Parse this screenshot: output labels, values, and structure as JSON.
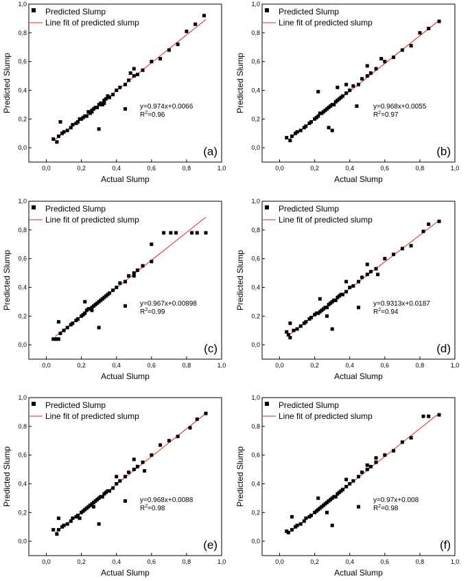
{
  "figure": {
    "marker_color": "#000000",
    "fit_line_color": "#e02020",
    "axis_color": "#000000"
  },
  "chart_data": [
    {
      "type": "scatter",
      "panel": "(a)",
      "xlabel": "Actual Slump",
      "ylabel": "Predicted Slump",
      "xlim": [
        -0.1,
        1.0
      ],
      "ylim": [
        -0.1,
        1.0
      ],
      "xticks": [
        "0,0",
        "0,2",
        "0,4",
        "0,6",
        "0,8",
        "1,0"
      ],
      "yticks": [
        "0,0",
        "0,2",
        "0,4",
        "0,6",
        "0,8",
        "1,0"
      ],
      "legend": [
        "Predicted Slump",
        "Line fit of predicted slump"
      ],
      "equation": "y=0.974x+0.0066",
      "r2_label": "R",
      "r2_exp": "2",
      "r2_value": "=0.96",
      "fit": {
        "slope": 0.974,
        "intercept": 0.0066,
        "x_range": [
          0.05,
          0.91
        ]
      },
      "x": [
        0.04,
        0.06,
        0.07,
        0.09,
        0.1,
        0.12,
        0.14,
        0.15,
        0.17,
        0.18,
        0.2,
        0.21,
        0.22,
        0.23,
        0.24,
        0.25,
        0.26,
        0.27,
        0.28,
        0.29,
        0.3,
        0.31,
        0.32,
        0.33,
        0.34,
        0.35,
        0.36,
        0.38,
        0.4,
        0.42,
        0.45,
        0.47,
        0.5,
        0.52,
        0.55,
        0.6,
        0.65,
        0.7,
        0.75,
        0.8,
        0.85,
        0.9,
        0.08,
        0.3,
        0.45,
        0.48,
        0.5,
        0.19,
        0.26,
        0.33
      ],
      "y": [
        0.06,
        0.04,
        0.08,
        0.1,
        0.11,
        0.12,
        0.14,
        0.16,
        0.17,
        0.18,
        0.2,
        0.21,
        0.22,
        0.22,
        0.25,
        0.24,
        0.26,
        0.27,
        0.28,
        0.28,
        0.3,
        0.31,
        0.3,
        0.33,
        0.34,
        0.36,
        0.35,
        0.37,
        0.4,
        0.42,
        0.44,
        0.47,
        0.5,
        0.51,
        0.54,
        0.6,
        0.62,
        0.68,
        0.72,
        0.81,
        0.86,
        0.92,
        0.18,
        0.13,
        0.27,
        0.52,
        0.55,
        0.2,
        0.25,
        0.31
      ]
    },
    {
      "type": "scatter",
      "panel": "(b)",
      "xlabel": "Actual Slump",
      "ylabel": "Predicted Slump",
      "xlim": [
        -0.1,
        1.0
      ],
      "ylim": [
        -0.1,
        1.0
      ],
      "xticks": [
        "0,0",
        "0,2",
        "0,4",
        "0,6",
        "0,8",
        "1,0"
      ],
      "yticks": [
        "0,0",
        "0,2",
        "0,4",
        "0,6",
        "0,8",
        "1,0"
      ],
      "legend": [
        "Predicted Slump",
        "Line fit of predicted slump"
      ],
      "equation": "y=0.968x+0.0055",
      "r2_label": "R",
      "r2_exp": "2",
      "r2_value": "=0.97",
      "fit": {
        "slope": 0.968,
        "intercept": 0.0055,
        "x_range": [
          0.05,
          0.91
        ]
      },
      "x": [
        0.04,
        0.06,
        0.07,
        0.09,
        0.1,
        0.12,
        0.14,
        0.15,
        0.17,
        0.18,
        0.2,
        0.21,
        0.22,
        0.23,
        0.24,
        0.25,
        0.26,
        0.27,
        0.28,
        0.29,
        0.3,
        0.31,
        0.32,
        0.33,
        0.34,
        0.35,
        0.36,
        0.38,
        0.4,
        0.42,
        0.45,
        0.47,
        0.5,
        0.52,
        0.55,
        0.6,
        0.65,
        0.7,
        0.75,
        0.8,
        0.85,
        0.91,
        0.3,
        0.44,
        0.22,
        0.5,
        0.33,
        0.28,
        0.38,
        0.58
      ],
      "y": [
        0.07,
        0.05,
        0.08,
        0.1,
        0.11,
        0.12,
        0.14,
        0.15,
        0.17,
        0.18,
        0.2,
        0.21,
        0.22,
        0.24,
        0.24,
        0.25,
        0.26,
        0.27,
        0.28,
        0.29,
        0.3,
        0.3,
        0.32,
        0.33,
        0.34,
        0.35,
        0.36,
        0.38,
        0.4,
        0.43,
        0.44,
        0.48,
        0.5,
        0.52,
        0.55,
        0.6,
        0.63,
        0.68,
        0.71,
        0.8,
        0.83,
        0.88,
        0.12,
        0.29,
        0.39,
        0.57,
        0.42,
        0.14,
        0.44,
        0.62
      ]
    },
    {
      "type": "scatter",
      "panel": "(c)",
      "xlabel": "Actual Slump",
      "ylabel": "Predicted Slump",
      "xlim": [
        -0.1,
        1.0
      ],
      "ylim": [
        -0.1,
        1.0
      ],
      "xticks": [
        "0,0",
        "0,2",
        "0,4",
        "0,6",
        "0,8",
        "1,0"
      ],
      "yticks": [
        "0,0",
        "0,2",
        "0,4",
        "0,6",
        "0,8",
        "1,0"
      ],
      "legend": [
        "Predicted Slump",
        "Line fit of predicted slump"
      ],
      "equation": "y=0.967x+0.00898",
      "r2_label": "R",
      "r2_exp": "2",
      "r2_value": "=0.99",
      "fit": {
        "slope": 0.967,
        "intercept": 0.00898,
        "x_range": [
          0.05,
          0.91
        ]
      },
      "x": [
        0.04,
        0.05,
        0.06,
        0.07,
        0.08,
        0.1,
        0.12,
        0.14,
        0.15,
        0.17,
        0.18,
        0.2,
        0.21,
        0.22,
        0.23,
        0.24,
        0.25,
        0.26,
        0.27,
        0.28,
        0.29,
        0.3,
        0.31,
        0.32,
        0.33,
        0.34,
        0.35,
        0.36,
        0.38,
        0.4,
        0.42,
        0.45,
        0.47,
        0.5,
        0.52,
        0.55,
        0.6,
        0.6,
        0.67,
        0.71,
        0.74,
        0.83,
        0.86,
        0.91,
        0.07,
        0.3,
        0.45,
        0.22,
        0.26,
        0.5
      ],
      "y": [
        0.04,
        0.04,
        0.04,
        0.04,
        0.08,
        0.1,
        0.12,
        0.14,
        0.15,
        0.17,
        0.18,
        0.2,
        0.21,
        0.22,
        0.24,
        0.25,
        0.25,
        0.26,
        0.27,
        0.28,
        0.29,
        0.3,
        0.31,
        0.32,
        0.33,
        0.34,
        0.35,
        0.36,
        0.38,
        0.4,
        0.43,
        0.44,
        0.48,
        0.5,
        0.52,
        0.55,
        0.58,
        0.7,
        0.78,
        0.78,
        0.78,
        0.78,
        0.78,
        0.78,
        0.16,
        0.12,
        0.27,
        0.3,
        0.24,
        0.48
      ]
    },
    {
      "type": "scatter",
      "panel": "(d)",
      "xlabel": "Actual Slump",
      "ylabel": "Predicted Slump",
      "xlim": [
        -0.1,
        1.0
      ],
      "ylim": [
        -0.1,
        1.0
      ],
      "xticks": [
        "0,0",
        "0,2",
        "0,4",
        "0,6",
        "0,8",
        "1,0"
      ],
      "yticks": [
        "0,0",
        "0,2",
        "0,4",
        "0,6",
        "0,8",
        "1,0"
      ],
      "legend": [
        "Predicted Slump",
        "Line fit of predicted slump"
      ],
      "equation": "y=0.9313x+0.0187",
      "r2_label": "R",
      "r2_exp": "2",
      "r2_value": "=0.94",
      "fit": {
        "slope": 0.9313,
        "intercept": 0.0187,
        "x_range": [
          0.05,
          0.91
        ]
      },
      "x": [
        0.04,
        0.05,
        0.06,
        0.08,
        0.1,
        0.12,
        0.14,
        0.15,
        0.17,
        0.18,
        0.2,
        0.21,
        0.22,
        0.23,
        0.24,
        0.25,
        0.26,
        0.27,
        0.28,
        0.29,
        0.3,
        0.31,
        0.32,
        0.33,
        0.34,
        0.35,
        0.36,
        0.38,
        0.4,
        0.42,
        0.45,
        0.47,
        0.5,
        0.52,
        0.55,
        0.6,
        0.65,
        0.7,
        0.75,
        0.82,
        0.85,
        0.91,
        0.06,
        0.3,
        0.45,
        0.23,
        0.27,
        0.38,
        0.5,
        0.56
      ],
      "y": [
        0.09,
        0.07,
        0.05,
        0.1,
        0.11,
        0.13,
        0.15,
        0.16,
        0.18,
        0.19,
        0.21,
        0.22,
        0.22,
        0.23,
        0.24,
        0.25,
        0.26,
        0.26,
        0.28,
        0.29,
        0.3,
        0.31,
        0.31,
        0.33,
        0.34,
        0.35,
        0.35,
        0.37,
        0.4,
        0.41,
        0.44,
        0.47,
        0.49,
        0.51,
        0.53,
        0.6,
        0.63,
        0.67,
        0.69,
        0.79,
        0.84,
        0.86,
        0.15,
        0.11,
        0.26,
        0.32,
        0.2,
        0.44,
        0.56,
        0.49
      ]
    },
    {
      "type": "scatter",
      "panel": "(e)",
      "xlabel": "Actual Slump",
      "ylabel": "Predicted Slump",
      "xlim": [
        -0.1,
        1.0
      ],
      "ylim": [
        -0.1,
        1.0
      ],
      "xticks": [
        "0,0",
        "0,2",
        "0,4",
        "0,6",
        "0,8",
        "1,0"
      ],
      "yticks": [
        "0,0",
        "0,2",
        "0,4",
        "0,6",
        "0,8",
        "1,0"
      ],
      "legend": [
        "Predicted Slump",
        "Line fit of predicted slump"
      ],
      "equation": "y=0.968x+0.0088",
      "r2_label": "R",
      "r2_exp": "2",
      "r2_value": "=0.98",
      "fit": {
        "slope": 0.968,
        "intercept": 0.0088,
        "x_range": [
          0.05,
          0.91
        ]
      },
      "x": [
        0.04,
        0.06,
        0.07,
        0.09,
        0.1,
        0.12,
        0.14,
        0.15,
        0.17,
        0.18,
        0.2,
        0.21,
        0.22,
        0.23,
        0.24,
        0.25,
        0.26,
        0.27,
        0.28,
        0.29,
        0.3,
        0.31,
        0.32,
        0.33,
        0.34,
        0.35,
        0.36,
        0.38,
        0.4,
        0.42,
        0.45,
        0.47,
        0.5,
        0.52,
        0.55,
        0.6,
        0.65,
        0.7,
        0.75,
        0.82,
        0.86,
        0.91,
        0.07,
        0.3,
        0.45,
        0.5,
        0.19,
        0.27,
        0.4,
        0.56
      ],
      "y": [
        0.08,
        0.05,
        0.08,
        0.1,
        0.11,
        0.12,
        0.14,
        0.16,
        0.17,
        0.18,
        0.2,
        0.21,
        0.22,
        0.23,
        0.24,
        0.25,
        0.26,
        0.27,
        0.28,
        0.29,
        0.3,
        0.31,
        0.31,
        0.33,
        0.34,
        0.35,
        0.35,
        0.37,
        0.4,
        0.42,
        0.45,
        0.48,
        0.5,
        0.52,
        0.55,
        0.6,
        0.67,
        0.7,
        0.73,
        0.79,
        0.85,
        0.89,
        0.16,
        0.12,
        0.28,
        0.57,
        0.16,
        0.24,
        0.45,
        0.49
      ]
    },
    {
      "type": "scatter",
      "panel": "(f)",
      "xlabel": "Actual Slump",
      "ylabel": "Predicted Slump",
      "xlim": [
        -0.1,
        1.0
      ],
      "ylim": [
        -0.1,
        1.0
      ],
      "xticks": [
        "0,0",
        "0,2",
        "0,4",
        "0,6",
        "0,8",
        "1,0"
      ],
      "yticks": [
        "0,0",
        "0,2",
        "0,4",
        "0,6",
        "0,8",
        "1,0"
      ],
      "legend": [
        "Predicted Slump",
        "Line fit of predicted slump"
      ],
      "equation": "y=0.97x+0.008",
      "r2_label": "R",
      "r2_exp": "2",
      "r2_value": "=0.98",
      "fit": {
        "slope": 0.97,
        "intercept": 0.008,
        "x_range": [
          0.05,
          0.91
        ]
      },
      "x": [
        0.04,
        0.05,
        0.07,
        0.09,
        0.1,
        0.12,
        0.14,
        0.15,
        0.17,
        0.18,
        0.2,
        0.21,
        0.22,
        0.23,
        0.24,
        0.25,
        0.26,
        0.27,
        0.28,
        0.29,
        0.3,
        0.31,
        0.32,
        0.33,
        0.34,
        0.35,
        0.36,
        0.38,
        0.4,
        0.42,
        0.45,
        0.47,
        0.5,
        0.52,
        0.55,
        0.6,
        0.65,
        0.7,
        0.75,
        0.82,
        0.85,
        0.91,
        0.07,
        0.3,
        0.45,
        0.5,
        0.22,
        0.27,
        0.38,
        0.55
      ],
      "y": [
        0.07,
        0.06,
        0.08,
        0.1,
        0.11,
        0.12,
        0.14,
        0.16,
        0.17,
        0.18,
        0.2,
        0.21,
        0.22,
        0.23,
        0.24,
        0.25,
        0.26,
        0.27,
        0.28,
        0.29,
        0.3,
        0.31,
        0.31,
        0.33,
        0.34,
        0.35,
        0.36,
        0.38,
        0.4,
        0.42,
        0.45,
        0.48,
        0.5,
        0.52,
        0.55,
        0.6,
        0.63,
        0.69,
        0.72,
        0.87,
        0.87,
        0.88,
        0.17,
        0.11,
        0.24,
        0.53,
        0.3,
        0.2,
        0.43,
        0.58
      ]
    }
  ]
}
